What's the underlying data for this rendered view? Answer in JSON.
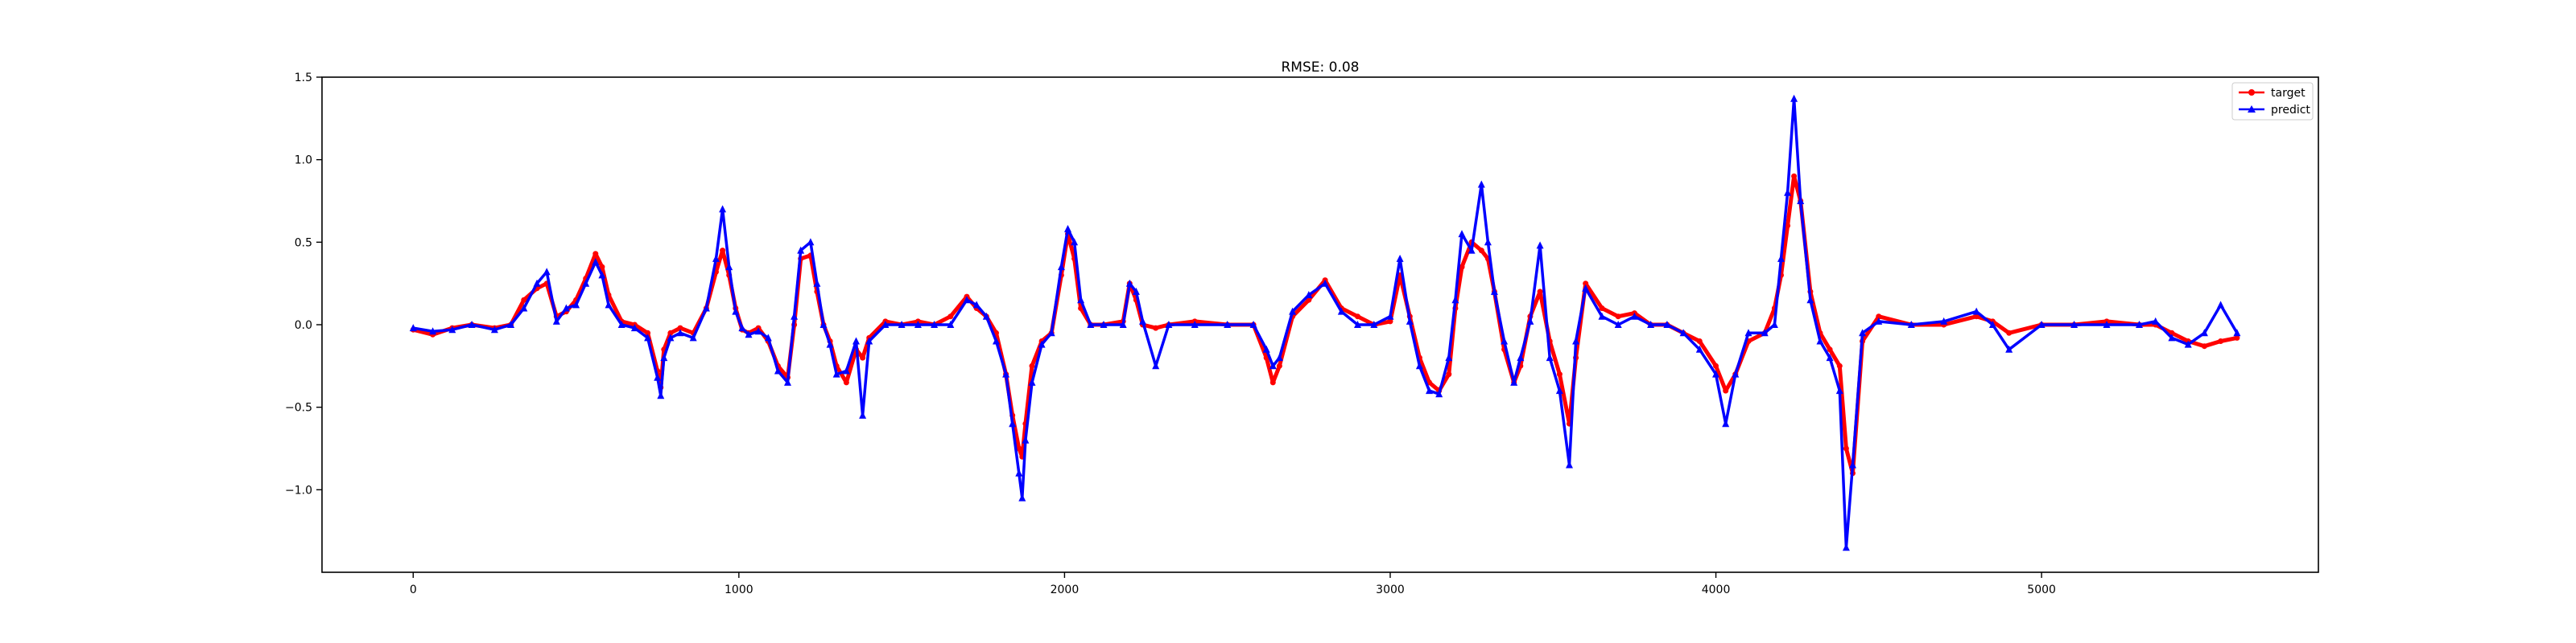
{
  "chart_data": {
    "type": "line",
    "title": "RMSE: 0.08",
    "xlabel": "",
    "ylabel": "",
    "xlim": [
      -280,
      5850
    ],
    "ylim": [
      -1.5,
      1.5
    ],
    "xticks": [
      0,
      1000,
      2000,
      3000,
      4000,
      5000
    ],
    "xtick_labels": [
      "0",
      "1000",
      "2000",
      "3000",
      "4000",
      "5000"
    ],
    "yticks": [
      1.5,
      1.0,
      0.5,
      0.0,
      -0.5,
      -1.0
    ],
    "ytick_labels": [
      "1.5",
      "1.0",
      "0.5",
      "0.0",
      "−0.5",
      "−1.0"
    ],
    "grid": false,
    "legend_position": "top-right",
    "series": [
      {
        "name": "target",
        "color": "#ff0000",
        "marker": "circle",
        "x": [
          0,
          60,
          120,
          180,
          250,
          300,
          340,
          380,
          410,
          440,
          470,
          500,
          530,
          560,
          580,
          600,
          640,
          680,
          720,
          750,
          760,
          770,
          790,
          820,
          860,
          900,
          930,
          950,
          970,
          990,
          1010,
          1030,
          1060,
          1090,
          1120,
          1150,
          1170,
          1190,
          1220,
          1240,
          1260,
          1280,
          1300,
          1330,
          1360,
          1380,
          1400,
          1450,
          1500,
          1550,
          1600,
          1650,
          1700,
          1730,
          1760,
          1790,
          1820,
          1840,
          1860,
          1870,
          1880,
          1900,
          1930,
          1960,
          1990,
          2010,
          2030,
          2050,
          2080,
          2120,
          2180,
          2200,
          2220,
          2240,
          2280,
          2320,
          2400,
          2500,
          2580,
          2620,
          2640,
          2660,
          2700,
          2750,
          2800,
          2850,
          2900,
          2950,
          3000,
          3030,
          3060,
          3090,
          3120,
          3150,
          3180,
          3200,
          3220,
          3250,
          3280,
          3300,
          3320,
          3350,
          3380,
          3400,
          3430,
          3460,
          3490,
          3520,
          3550,
          3570,
          3600,
          3650,
          3700,
          3750,
          3800,
          3850,
          3900,
          3950,
          4000,
          4030,
          4060,
          4100,
          4150,
          4180,
          4200,
          4220,
          4240,
          4260,
          4290,
          4320,
          4350,
          4380,
          4400,
          4420,
          4450,
          4500,
          4600,
          4700,
          4800,
          4850,
          4900,
          5000,
          5100,
          5200,
          5300,
          5350,
          5400,
          5450,
          5500,
          5550,
          5600
        ],
        "y": [
          -0.03,
          -0.06,
          -0.02,
          0.0,
          -0.02,
          0.0,
          0.15,
          0.22,
          0.25,
          0.05,
          0.08,
          0.15,
          0.28,
          0.43,
          0.35,
          0.18,
          0.02,
          0.0,
          -0.05,
          -0.28,
          -0.38,
          -0.15,
          -0.05,
          -0.02,
          -0.05,
          0.1,
          0.32,
          0.45,
          0.3,
          0.1,
          -0.03,
          -0.05,
          -0.02,
          -0.1,
          -0.25,
          -0.32,
          0.0,
          0.4,
          0.42,
          0.2,
          0.0,
          -0.1,
          -0.25,
          -0.35,
          -0.15,
          -0.2,
          -0.08,
          0.02,
          0.0,
          0.02,
          0.0,
          0.05,
          0.17,
          0.1,
          0.05,
          -0.05,
          -0.3,
          -0.55,
          -0.75,
          -0.8,
          -0.6,
          -0.25,
          -0.1,
          -0.05,
          0.3,
          0.55,
          0.4,
          0.1,
          0.0,
          0.0,
          0.02,
          0.25,
          0.15,
          0.0,
          -0.02,
          0.0,
          0.02,
          0.0,
          0.0,
          -0.2,
          -0.35,
          -0.25,
          0.05,
          0.15,
          0.27,
          0.1,
          0.05,
          0.0,
          0.02,
          0.3,
          0.05,
          -0.2,
          -0.35,
          -0.4,
          -0.3,
          0.1,
          0.35,
          0.5,
          0.45,
          0.4,
          0.2,
          -0.15,
          -0.35,
          -0.25,
          0.05,
          0.2,
          -0.1,
          -0.3,
          -0.6,
          -0.2,
          0.25,
          0.1,
          0.05,
          0.07,
          0.0,
          0.0,
          -0.05,
          -0.1,
          -0.25,
          -0.4,
          -0.3,
          -0.1,
          -0.05,
          0.1,
          0.3,
          0.6,
          0.9,
          0.75,
          0.2,
          -0.05,
          -0.15,
          -0.25,
          -0.75,
          -0.9,
          -0.1,
          0.05,
          0.0,
          0.0,
          0.05,
          0.02,
          -0.05,
          0.0,
          0.0,
          0.02,
          0.0,
          0.0,
          -0.05,
          -0.1,
          -0.13,
          -0.1,
          -0.08
        ]
      },
      {
        "name": "predict",
        "color": "#0000ff",
        "marker": "triangle-up",
        "x": [
          0,
          60,
          120,
          180,
          250,
          300,
          340,
          380,
          410,
          440,
          470,
          500,
          530,
          560,
          580,
          600,
          640,
          680,
          720,
          750,
          760,
          770,
          790,
          820,
          860,
          900,
          930,
          950,
          970,
          990,
          1010,
          1030,
          1060,
          1090,
          1120,
          1150,
          1170,
          1190,
          1220,
          1240,
          1260,
          1280,
          1300,
          1330,
          1360,
          1380,
          1400,
          1450,
          1500,
          1550,
          1600,
          1650,
          1700,
          1730,
          1760,
          1790,
          1820,
          1840,
          1860,
          1870,
          1880,
          1900,
          1930,
          1960,
          1990,
          2010,
          2030,
          2050,
          2080,
          2120,
          2180,
          2200,
          2220,
          2240,
          2280,
          2320,
          2400,
          2500,
          2580,
          2620,
          2640,
          2660,
          2700,
          2750,
          2800,
          2850,
          2900,
          2950,
          3000,
          3030,
          3060,
          3090,
          3120,
          3150,
          3180,
          3200,
          3220,
          3250,
          3280,
          3300,
          3320,
          3350,
          3380,
          3400,
          3430,
          3460,
          3490,
          3520,
          3550,
          3570,
          3600,
          3650,
          3700,
          3750,
          3800,
          3850,
          3900,
          3950,
          4000,
          4030,
          4060,
          4100,
          4150,
          4180,
          4200,
          4220,
          4240,
          4260,
          4290,
          4320,
          4350,
          4380,
          4400,
          4420,
          4450,
          4500,
          4600,
          4700,
          4800,
          4850,
          4900,
          5000,
          5100,
          5200,
          5300,
          5350,
          5400,
          5450,
          5500,
          5550,
          5600
        ],
        "y": [
          -0.02,
          -0.04,
          -0.03,
          0.0,
          -0.03,
          0.0,
          0.1,
          0.25,
          0.32,
          0.02,
          0.1,
          0.12,
          0.25,
          0.38,
          0.3,
          0.12,
          0.0,
          -0.02,
          -0.08,
          -0.32,
          -0.43,
          -0.2,
          -0.08,
          -0.05,
          -0.08,
          0.1,
          0.4,
          0.7,
          0.35,
          0.08,
          -0.02,
          -0.06,
          -0.04,
          -0.08,
          -0.28,
          -0.35,
          0.05,
          0.45,
          0.5,
          0.25,
          0.0,
          -0.12,
          -0.3,
          -0.28,
          -0.1,
          -0.55,
          -0.1,
          0.0,
          0.0,
          0.0,
          0.0,
          0.0,
          0.15,
          0.12,
          0.05,
          -0.1,
          -0.3,
          -0.6,
          -0.9,
          -1.05,
          -0.7,
          -0.35,
          -0.12,
          -0.05,
          0.35,
          0.58,
          0.5,
          0.15,
          0.0,
          0.0,
          0.0,
          0.25,
          0.2,
          0.02,
          -0.25,
          0.0,
          0.0,
          0.0,
          0.0,
          -0.15,
          -0.25,
          -0.2,
          0.08,
          0.18,
          0.25,
          0.08,
          0.0,
          0.0,
          0.05,
          0.4,
          0.02,
          -0.25,
          -0.4,
          -0.42,
          -0.2,
          0.15,
          0.55,
          0.45,
          0.85,
          0.5,
          0.2,
          -0.1,
          -0.35,
          -0.2,
          0.02,
          0.48,
          -0.2,
          -0.4,
          -0.85,
          -0.1,
          0.22,
          0.05,
          0.0,
          0.05,
          0.0,
          0.0,
          -0.05,
          -0.15,
          -0.3,
          -0.6,
          -0.3,
          -0.05,
          -0.05,
          0.0,
          0.4,
          0.8,
          1.37,
          0.75,
          0.15,
          -0.1,
          -0.2,
          -0.4,
          -1.35,
          -0.85,
          -0.05,
          0.02,
          0.0,
          0.02,
          0.08,
          0.0,
          -0.15,
          0.0,
          0.0,
          0.0,
          0.0,
          0.02,
          -0.08,
          -0.12,
          -0.05,
          0.12,
          -0.05
        ]
      }
    ]
  }
}
